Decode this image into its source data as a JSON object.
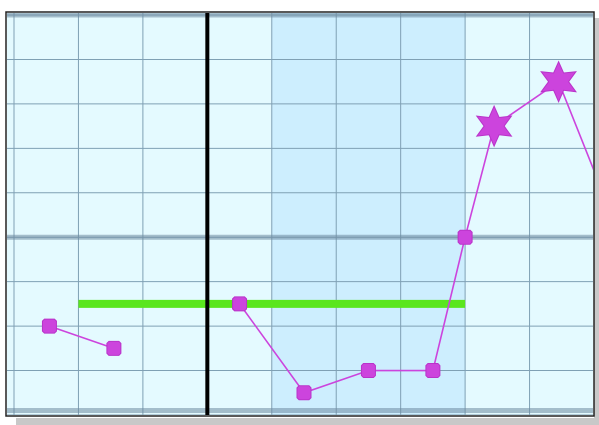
{
  "chart_data": {
    "type": "line",
    "xlim": [
      0,
      9
    ],
    "ylim": [
      0,
      9
    ],
    "grid": true,
    "colors": {
      "background": "#e4faff",
      "highlight_band": "#cdeefe",
      "grid_minor": "#7fa0b4",
      "grid_major": "#6e8aa0",
      "series": "#cc44dd",
      "marker_edge": "#b933c9",
      "reference_line": "#5ae61e",
      "cursor": "#000000"
    },
    "highlight_band": {
      "x_start": 4,
      "x_end": 7
    },
    "major_gridlines_y": [
      0.1,
      4,
      9
    ],
    "cursor_line": {
      "x": 3
    },
    "reference_line": {
      "x_start": 1,
      "x_end": 7,
      "y": 2.5
    },
    "series": [
      {
        "marker": "square",
        "segments": [
          [
            {
              "x": 0.55,
              "y": 2.0
            },
            {
              "x": 1.55,
              "y": 1.5
            }
          ],
          [
            {
              "x": 3.5,
              "y": 2.5
            },
            {
              "x": 4.5,
              "y": 0.5
            },
            {
              "x": 5.5,
              "y": 1.0
            },
            {
              "x": 6.5,
              "y": 1.0
            },
            {
              "x": 7.0,
              "y": 4.0
            }
          ]
        ]
      },
      {
        "marker": "star",
        "segments": [
          [
            {
              "x": 7.0,
              "y": 4.0
            },
            {
              "x": 7.45,
              "y": 6.5
            },
            {
              "x": 8.45,
              "y": 7.5
            },
            {
              "x": 9.0,
              "y": 5.5
            }
          ]
        ],
        "star_points": [
          {
            "x": 7.45,
            "y": 6.5
          },
          {
            "x": 8.45,
            "y": 7.5
          }
        ]
      }
    ]
  }
}
